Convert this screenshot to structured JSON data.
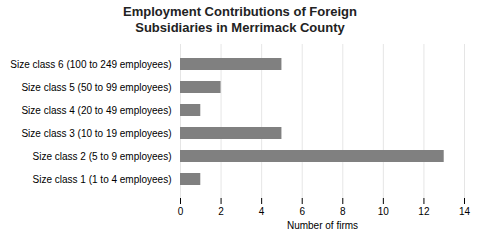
{
  "chart_data": {
    "type": "bar",
    "orientation": "horizontal",
    "title": "Employment Contributions of Foreign\nSubsidiaries in Merrimack County",
    "categories": [
      "Size class 1 (1 to 4 employees)",
      "Size class 2 (5 to 9 employees)",
      "Size class 3 (10 to 19 employees)",
      "Size class 4 (20 to 49 employees)",
      "Size class 5 (50 to 99 employees)",
      "Size class 6 (100 to 249 employees)"
    ],
    "values": [
      1,
      13,
      5,
      1,
      2,
      5
    ],
    "color": "#808080",
    "xlabel": "Number of firms",
    "xlim": [
      0,
      14
    ],
    "xticks": [
      0,
      2,
      4,
      6,
      8,
      10,
      12,
      14
    ],
    "grid": true
  }
}
